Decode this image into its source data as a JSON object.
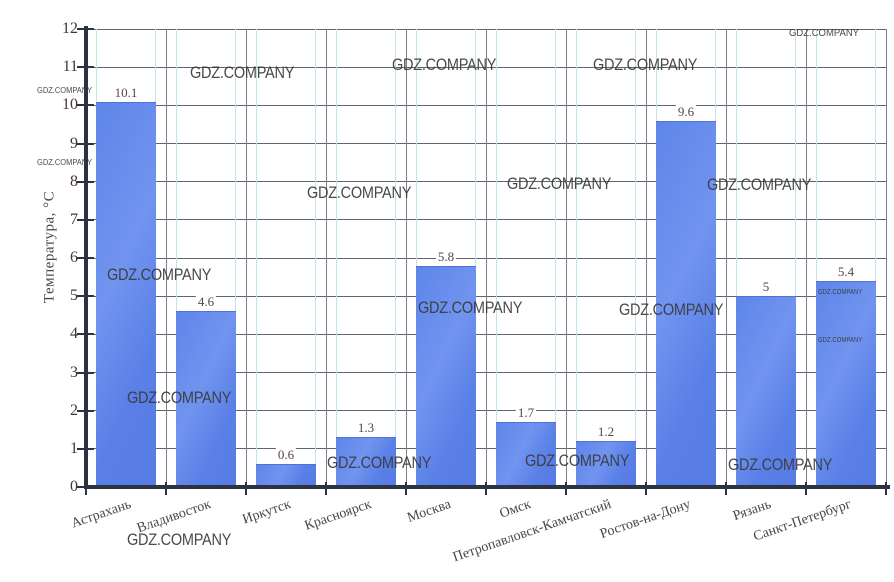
{
  "watermark": {
    "text": "GDZ.COMPANY"
  },
  "chart_data": {
    "type": "bar",
    "title": "",
    "xlabel": "",
    "ylabel": "Температура, °C",
    "categories": [
      "Астрахань",
      "Владивосток",
      "Иркутск",
      "Красноярск",
      "Москва",
      "Омск",
      "Петропавловск-Камчатский",
      "Ростов-на-Дону",
      "Рязань",
      "Санкт-Петербург"
    ],
    "values": [
      10.1,
      4.6,
      0.6,
      1.3,
      5.8,
      1.7,
      1.2,
      9.6,
      5,
      5.4
    ],
    "bar_labels": [
      "10.1",
      "4.6",
      "0.6",
      "1.3",
      "5.8",
      "1.7",
      "1.2",
      "9.6",
      "5",
      "5.4"
    ],
    "ylim": [
      0,
      12
    ],
    "yticks": [
      "0",
      "1",
      "2",
      "3",
      "4",
      "5",
      "6",
      "7",
      "8",
      "9",
      "10",
      "11",
      "12"
    ],
    "grid": true,
    "legend": false
  },
  "colors": {
    "bar": "#5b82ea",
    "bar_highlight": "#7094ef",
    "axis": "#2c3340",
    "hgrid": "#5b6670",
    "vgrid": "#77828c",
    "bar_edge_guide": "#c6e3e9",
    "tick_label": "#463434",
    "value_label": "#5c4343",
    "watermark": "#3a3a3a"
  }
}
